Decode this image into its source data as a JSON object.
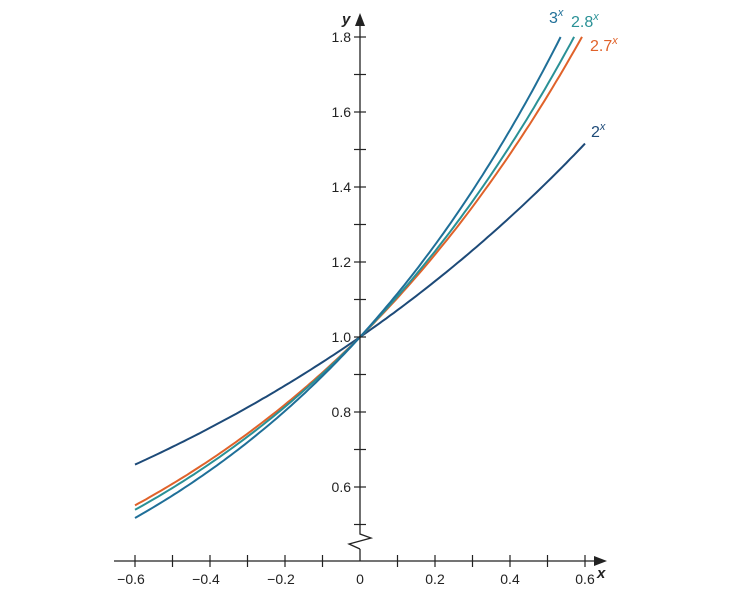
{
  "chart_data": {
    "type": "line",
    "title": "",
    "xlabel": "x",
    "ylabel": "y",
    "xlim": [
      -0.6,
      0.6
    ],
    "ylim": [
      0.5,
      1.8
    ],
    "y_axis_break": true,
    "grid": false,
    "x_ticks": [
      -0.6,
      -0.5,
      -0.4,
      -0.3,
      -0.2,
      -0.1,
      0,
      0.1,
      0.2,
      0.3,
      0.4,
      0.5,
      0.6
    ],
    "x_tick_labels": [
      "−0.6",
      "−0.4",
      "−0.2",
      "0",
      "0.2",
      "0.4",
      "0.6"
    ],
    "x_tick_label_values": [
      -0.6,
      -0.4,
      -0.2,
      0,
      0.2,
      0.4,
      0.6
    ],
    "y_ticks": [
      0.5,
      0.6,
      0.7,
      0.8,
      0.9,
      1.0,
      1.1,
      1.2,
      1.3,
      1.4,
      1.5,
      1.6,
      1.7,
      1.8
    ],
    "y_tick_labels": [
      "0.6",
      "0.8",
      "1.0",
      "1.2",
      "1.4",
      "1.6",
      "1.8"
    ],
    "y_tick_label_values": [
      0.6,
      0.8,
      1.0,
      1.2,
      1.4,
      1.6,
      1.8
    ],
    "series": [
      {
        "name": "2",
        "exp": "x",
        "base": 2,
        "x_range": [
          -0.6,
          0.6
        ],
        "color": "#1d4a78"
      },
      {
        "name": "2.7",
        "exp": "x",
        "base": 2.7,
        "x_range": [
          -0.6,
          0.592
        ],
        "color": "#e0622a"
      },
      {
        "name": "2.8",
        "exp": "x",
        "base": 2.8,
        "x_range": [
          -0.6,
          0.571
        ],
        "color": "#2a9196"
      },
      {
        "name": "3",
        "exp": "x",
        "base": 3,
        "x_range": [
          -0.6,
          0.535
        ],
        "color": "#1f6f98"
      }
    ]
  }
}
